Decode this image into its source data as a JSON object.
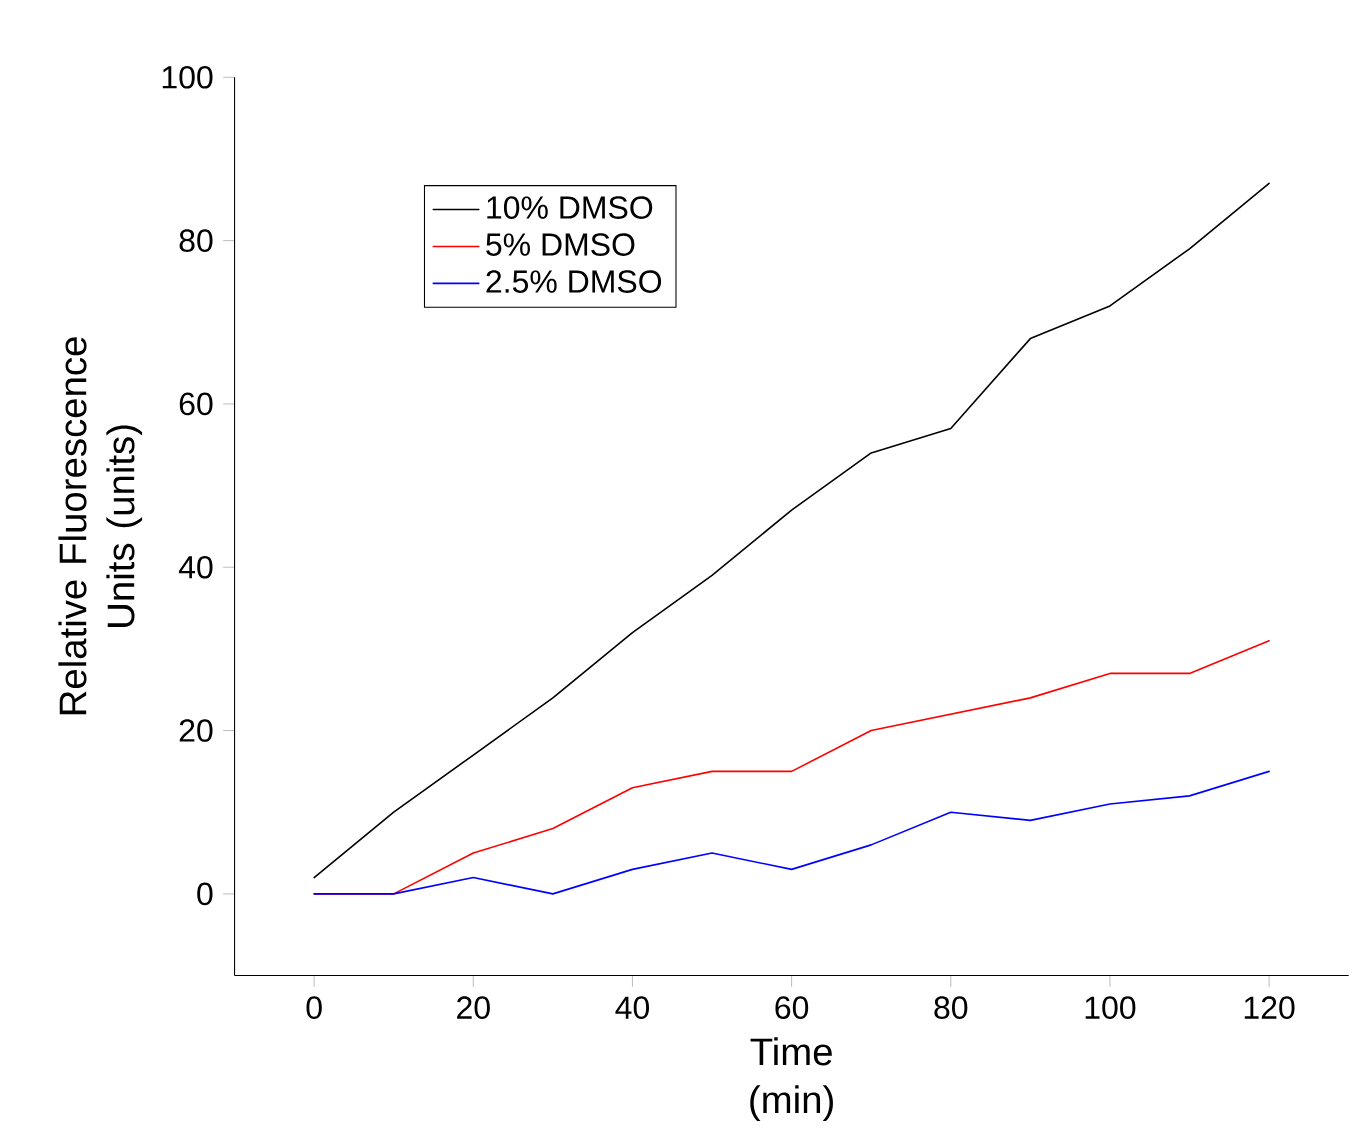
{
  "chart_data": {
    "type": "line",
    "xlabel": "Time (min)",
    "ylabel": "Relative Fluorescence Units (units)",
    "x": [
      0,
      10,
      20,
      30,
      40,
      50,
      60,
      70,
      80,
      90,
      100,
      110,
      120
    ],
    "series": [
      {
        "name": "10% DMSO",
        "color": "#000000",
        "values": [
          2,
          10,
          17,
          24,
          32,
          39,
          47,
          54,
          57,
          68,
          72,
          79,
          87
        ]
      },
      {
        "name": "5% DMSO",
        "color": "#ff0000",
        "values": [
          0,
          0,
          5,
          8,
          13,
          15,
          15,
          20,
          22,
          24,
          27,
          27,
          31
        ]
      },
      {
        "name": "2.5% DMSO",
        "color": "#0000ff",
        "values": [
          0,
          0,
          2,
          0,
          3,
          5,
          3,
          6,
          10,
          9,
          11,
          12,
          15
        ]
      }
    ],
    "xlim": [
      -10,
      130
    ],
    "ylim": [
      -10,
      100
    ],
    "xticks": [
      0,
      20,
      40,
      60,
      80,
      100,
      120
    ],
    "yticks": [
      0,
      20,
      40,
      60,
      80,
      100
    ],
    "legend": "top left",
    "grid": false,
    "marker": "none",
    "line_style": "solid"
  }
}
